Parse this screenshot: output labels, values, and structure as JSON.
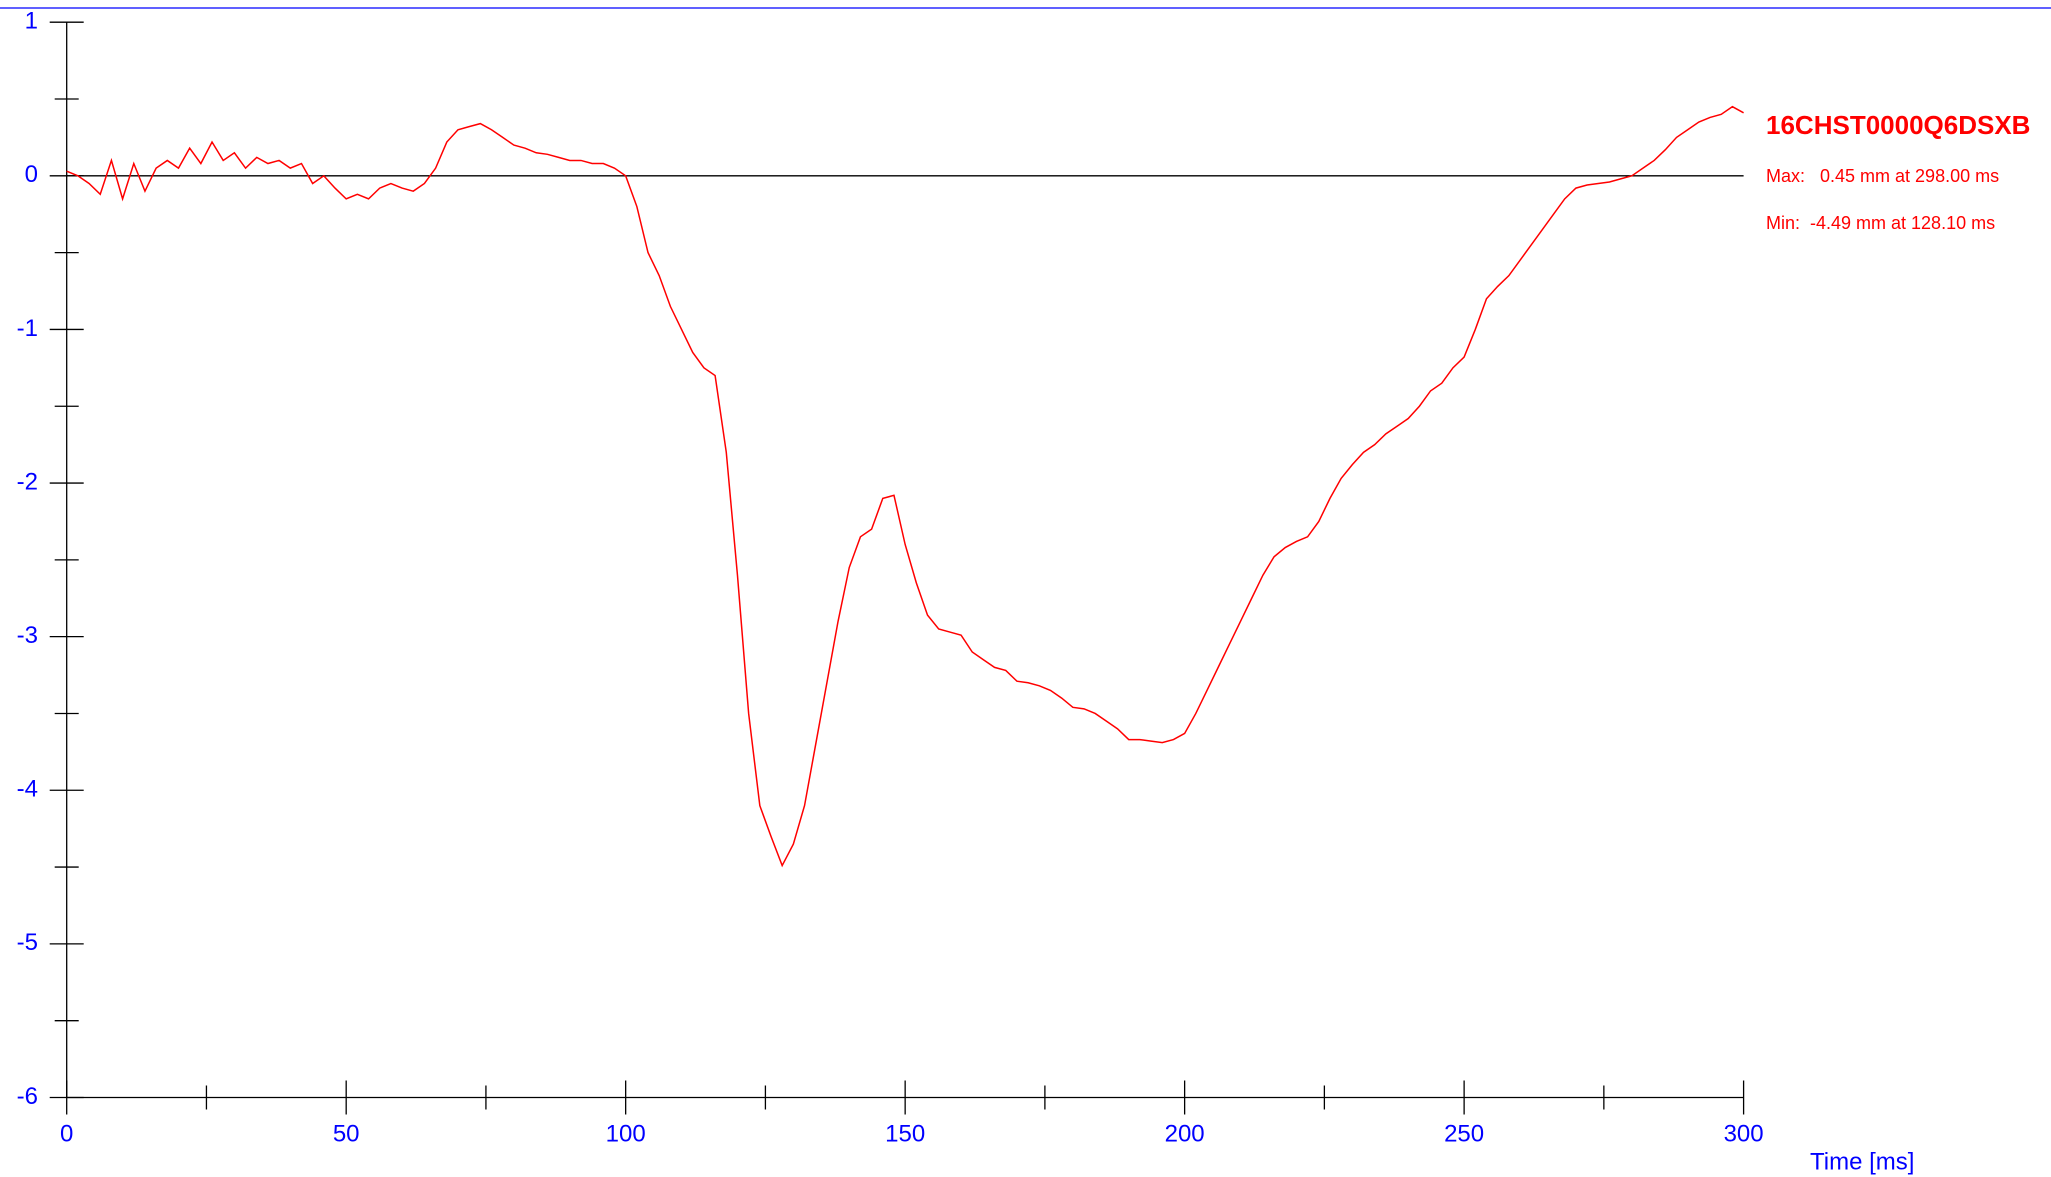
{
  "chart_data": {
    "type": "line",
    "x_label": "Time [ms]",
    "x": [
      0,
      2,
      4,
      6,
      8,
      10,
      12,
      14,
      16,
      18,
      20,
      22,
      24,
      26,
      28,
      30,
      32,
      34,
      36,
      38,
      40,
      42,
      44,
      46,
      48,
      50,
      52,
      54,
      56,
      58,
      60,
      62,
      64,
      66,
      68,
      70,
      72,
      74,
      76,
      78,
      80,
      82,
      84,
      86,
      88,
      90,
      92,
      94,
      96,
      98,
      100,
      102,
      104,
      106,
      108,
      110,
      112,
      114,
      116,
      118,
      120,
      122,
      124,
      126,
      128,
      130,
      132,
      134,
      136,
      138,
      140,
      142,
      144,
      146,
      148,
      150,
      152,
      154,
      156,
      158,
      160,
      162,
      164,
      166,
      168,
      170,
      172,
      174,
      176,
      178,
      180,
      182,
      184,
      186,
      188,
      190,
      192,
      194,
      196,
      198,
      200,
      202,
      204,
      206,
      208,
      210,
      212,
      214,
      216,
      218,
      220,
      222,
      224,
      226,
      228,
      230,
      232,
      234,
      236,
      238,
      240,
      242,
      244,
      246,
      248,
      250,
      252,
      254,
      256,
      258,
      260,
      262,
      264,
      266,
      268,
      270,
      272,
      274,
      276,
      278,
      280,
      282,
      284,
      286,
      288,
      290,
      292,
      294,
      296,
      298,
      300
    ],
    "series": [
      {
        "name": "16CHST0000Q6DSXB",
        "color": "#ff0000",
        "values": [
          0.03,
          0.0,
          -0.05,
          -0.12,
          0.1,
          -0.15,
          0.08,
          -0.1,
          0.05,
          0.1,
          0.05,
          0.18,
          0.08,
          0.22,
          0.1,
          0.15,
          0.05,
          0.12,
          0.08,
          0.1,
          0.05,
          0.08,
          -0.05,
          0.0,
          -0.08,
          -0.15,
          -0.12,
          -0.15,
          -0.08,
          -0.05,
          -0.08,
          -0.1,
          -0.05,
          0.05,
          0.22,
          0.3,
          0.32,
          0.34,
          0.3,
          0.25,
          0.2,
          0.18,
          0.15,
          0.14,
          0.12,
          0.1,
          0.1,
          0.08,
          0.08,
          0.05,
          0.0,
          -0.2,
          -0.5,
          -0.65,
          -0.85,
          -1.0,
          -1.15,
          -1.25,
          -1.3,
          -1.8,
          -2.6,
          -3.5,
          -4.1,
          -4.3,
          -4.49,
          -4.35,
          -4.1,
          -3.7,
          -3.3,
          -2.9,
          -2.55,
          -2.35,
          -2.3,
          -2.1,
          -2.08,
          -2.4,
          -2.65,
          -2.86,
          -2.95,
          -2.97,
          -2.99,
          -3.1,
          -3.15,
          -3.2,
          -3.22,
          -3.29,
          -3.3,
          -3.32,
          -3.35,
          -3.4,
          -3.46,
          -3.47,
          -3.5,
          -3.55,
          -3.6,
          -3.67,
          -3.67,
          -3.68,
          -3.69,
          -3.67,
          -3.63,
          -3.5,
          -3.35,
          -3.2,
          -3.05,
          -2.9,
          -2.75,
          -2.6,
          -2.48,
          -2.42,
          -2.38,
          -2.35,
          -2.25,
          -2.1,
          -1.97,
          -1.88,
          -1.8,
          -1.75,
          -1.68,
          -1.63,
          -1.58,
          -1.5,
          -1.4,
          -1.35,
          -1.25,
          -1.18,
          -1.0,
          -0.8,
          -0.72,
          -0.65,
          -0.55,
          -0.45,
          -0.35,
          -0.25,
          -0.15,
          -0.08,
          -0.06,
          -0.05,
          -0.04,
          -0.02,
          0.0,
          0.05,
          0.1,
          0.17,
          0.25,
          0.3,
          0.35,
          0.38,
          0.4,
          0.45,
          0.41
        ]
      }
    ],
    "annotations": [
      "Max:   0.45 mm at 298.00 ms",
      "Min:  -4.49 mm at 128.10 ms"
    ],
    "xlim": [
      0,
      300
    ],
    "xticks": [
      0,
      50,
      100,
      150,
      200,
      250,
      300
    ],
    "xminor_ticks": [
      25,
      75,
      125,
      175,
      225,
      275
    ],
    "ylim": [
      -6,
      1
    ],
    "yticks": [
      -6,
      -5,
      -4,
      -3,
      -2,
      -1,
      0,
      1
    ],
    "yminor_ticks": [
      -5.5,
      -4.5,
      -3.5,
      -2.5,
      -1.5,
      -0.5,
      0.5
    ],
    "zero_line": true
  }
}
